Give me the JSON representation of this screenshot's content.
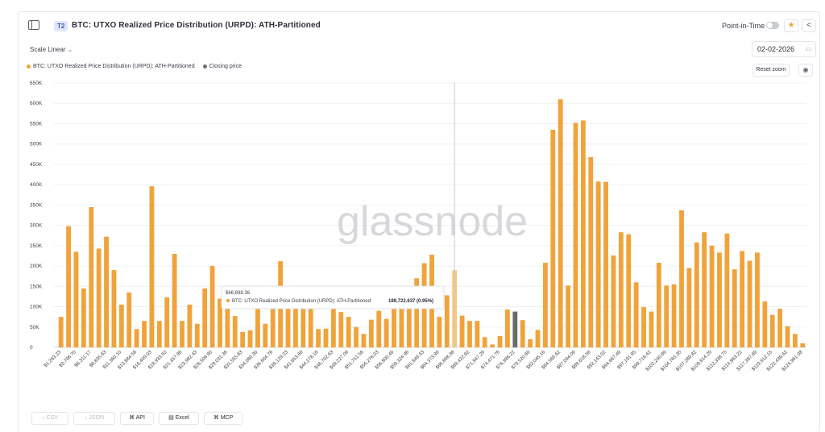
{
  "header": {
    "badge": "T2",
    "title": "BTC: UTXO Realized Price Distribution (URPD): ATH-Partitioned",
    "point_in_time_label": "Point-in-Time",
    "star_icon": "star-icon",
    "share_icon": "share-icon"
  },
  "controls": {
    "scale_label": "Scale Linear",
    "date_value": "02-02-2026",
    "reset_zoom_label": "Reset zoom"
  },
  "legend": [
    {
      "label": "BTC: UTXO Realized Price Distribution (URPD): ATH-Partitioned",
      "color": "#f0a33a"
    },
    {
      "label": "Closing price",
      "color": "#6b7079"
    }
  ],
  "watermark": "glassnode",
  "tooltip": {
    "x_label": "$66,898.36",
    "series_label": "BTC: UTXO Realized Price Distribution (URPD): ATH-Partitioned:",
    "value_text": "189,722.637 (0.95%)"
  },
  "footer": {
    "csv_label": "CSV",
    "json_label": "JSON",
    "api_label": "API",
    "excel_label": "Excel",
    "mcp_label": "MCP"
  },
  "chart_data": {
    "type": "bar",
    "ylim": [
      0,
      650000
    ],
    "yticks": [
      0,
      50000,
      100000,
      150000,
      200000,
      250000,
      300000,
      350000,
      400000,
      450000,
      500000,
      550000,
      600000,
      650000
    ],
    "ytick_labels": [
      "0",
      "50K",
      "100K",
      "150K",
      "200K",
      "250K",
      "300K",
      "350K",
      "400K",
      "450K",
      "500K",
      "550K",
      "600K",
      "650K"
    ],
    "grid": true,
    "colors": {
      "bar": "#f0a33a",
      "highlight": "#f5c77e",
      "closing": "#6b6b6b"
    },
    "x_tick_labels": [
      "$1,263.23",
      "$3,796.70",
      "$6,311.17",
      "$8,835.63",
      "$11,360.10",
      "$13,884.56",
      "$16,409.03",
      "$18,933.50",
      "$21,457.96",
      "$23,982.43",
      "$26,506.90",
      "$29,031.36",
      "$31,555.83",
      "$34,080.30",
      "$36,604.76",
      "$39,129.23",
      "$41,653.69",
      "$44,178.16",
      "$46,702.63",
      "$49,227.09",
      "$51,751.56",
      "$54,276.03",
      "$56,800.49",
      "$59,324.96",
      "$61,849.43",
      "$64,373.89",
      "$66,898.36",
      "$69,422.82",
      "$71,947.29",
      "$74,471.76",
      "$76,996.22",
      "$79,520.69",
      "$82,045.16",
      "$84,569.62",
      "$87,094.09",
      "$89,618.56",
      "$92,143.02",
      "$94,667.49",
      "$97,191.95",
      "$99,716.42",
      "$102,240.89",
      "$104,765.35",
      "$107,289.82",
      "$109,814.29",
      "$112,338.75",
      "$114,863.22",
      "$117,387.69",
      "$119,912.15",
      "$122,436.62",
      "$124,961.08"
    ],
    "values": [
      75000,
      298000,
      235000,
      145000,
      345000,
      243000,
      272000,
      190000,
      105000,
      135000,
      45000,
      65000,
      396000,
      65000,
      123000,
      230000,
      65000,
      105000,
      58000,
      145000,
      200000,
      120000,
      105000,
      77000,
      38000,
      42000,
      105000,
      58000,
      105000,
      212000,
      137000,
      140000,
      107000,
      135000,
      45000,
      46000,
      115000,
      87000,
      75000,
      50000,
      33000,
      68000,
      90000,
      70000,
      107000,
      100000,
      122000,
      170000,
      207000,
      228000,
      75000,
      128000,
      189723,
      78000,
      65000,
      65000,
      25000,
      7000,
      28000,
      93000,
      88000,
      67000,
      20000,
      43000,
      208000,
      535000,
      610000,
      152000,
      552000,
      558000,
      468000,
      408000,
      407000,
      226000,
      283000,
      278000,
      160000,
      99000,
      88000,
      208000,
      152000,
      155000,
      337000,
      195000,
      258000,
      283000,
      250000,
      233000,
      280000,
      192000,
      237000,
      213000,
      233000,
      113000,
      80000,
      95000,
      52000,
      33000,
      10000
    ],
    "highlight_index": 52,
    "closing_index": 60
  }
}
